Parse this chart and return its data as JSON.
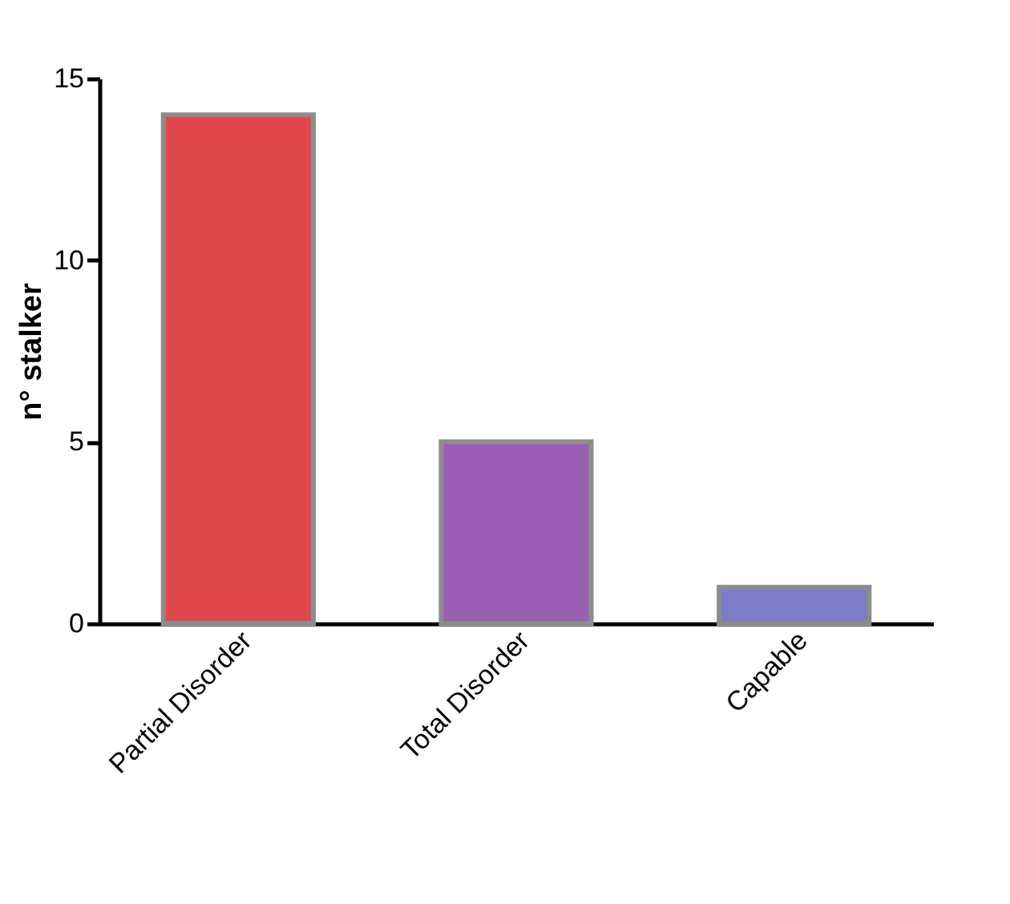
{
  "chart_data": {
    "type": "bar",
    "ylabel": "n° stalker",
    "categories": [
      "Partial Disorder",
      "Total Disorder",
      "Capable"
    ],
    "values": [
      14,
      5,
      1
    ],
    "colors": [
      "#e0474c",
      "#9a5fb4",
      "#7d7cc9"
    ],
    "ylim": [
      0,
      15
    ],
    "yticks": [
      0,
      5,
      10,
      15
    ]
  }
}
